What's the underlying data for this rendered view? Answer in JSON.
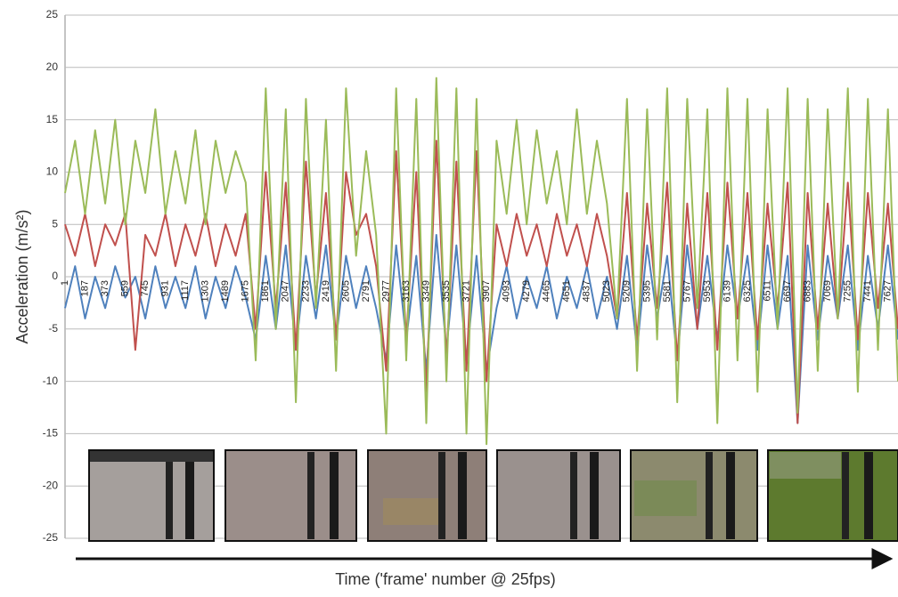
{
  "chart_data": {
    "type": "line",
    "x_label": "Time ('frame' number @ 25fps)",
    "y_label": "Acceleration (m/s²)",
    "x": [
      1,
      94,
      187,
      280,
      373,
      466,
      559,
      652,
      745,
      838,
      931,
      1024,
      1117,
      1210,
      1303,
      1396,
      1489,
      1582,
      1675,
      1768,
      1861,
      1954,
      2047,
      2140,
      2233,
      2326,
      2419,
      2512,
      2605,
      2698,
      2791,
      2884,
      2977,
      3070,
      3163,
      3256,
      3349,
      3442,
      3535,
      3628,
      3721,
      3814,
      3907,
      4000,
      4093,
      4186,
      4279,
      4372,
      4465,
      4558,
      4651,
      4744,
      4837,
      4930,
      5023,
      5116,
      5209,
      5302,
      5395,
      5488,
      5581,
      5674,
      5767,
      5860,
      5953,
      6046,
      6139,
      6232,
      6325,
      6418,
      6511,
      6604,
      6697,
      6790,
      6883,
      6976,
      7069,
      7162,
      7255,
      7348,
      7441,
      7534,
      7627,
      7720
    ],
    "series": [
      {
        "color": "#4f81bd",
        "values": [
          -3,
          1,
          -4,
          0,
          -3,
          1,
          -2,
          0,
          -4,
          1,
          -3,
          0,
          -3,
          1,
          -4,
          0,
          -3,
          1,
          -2,
          -6,
          2,
          -5,
          3,
          -7,
          2,
          -4,
          3,
          -6,
          2,
          -3,
          1,
          -3,
          -8,
          3,
          -6,
          2,
          -9,
          4,
          -7,
          3,
          -8,
          2,
          -9,
          -3,
          1,
          -4,
          0,
          -3,
          1,
          -4,
          0,
          -3,
          1,
          -4,
          0,
          -5,
          2,
          -7,
          3,
          -4,
          2,
          -8,
          3,
          -5,
          2,
          -6,
          3,
          -4,
          2,
          -7,
          3,
          -5,
          2,
          -14,
          3,
          -6,
          2,
          -4,
          3,
          -7,
          2,
          -5,
          3,
          -6
        ]
      },
      {
        "color": "#c0504d",
        "values": [
          5,
          2,
          6,
          1,
          5,
          3,
          6,
          -7,
          4,
          2,
          6,
          1,
          5,
          2,
          6,
          1,
          5,
          2,
          6,
          -5,
          10,
          -3,
          9,
          -7,
          11,
          -2,
          8,
          -6,
          10,
          4,
          6,
          1,
          -9,
          12,
          -6,
          10,
          -11,
          13,
          -8,
          11,
          -9,
          12,
          -10,
          5,
          1,
          6,
          2,
          5,
          1,
          6,
          2,
          5,
          1,
          6,
          2,
          -4,
          8,
          -6,
          7,
          -3,
          9,
          -8,
          7,
          -5,
          8,
          -7,
          9,
          -4,
          8,
          -6,
          7,
          -3,
          9,
          -14,
          8,
          -5,
          7,
          -4,
          9,
          -6,
          8,
          -3,
          7,
          -5
        ]
      },
      {
        "color": "#9bbb59",
        "values": [
          8,
          13,
          6,
          14,
          7,
          15,
          5,
          13,
          8,
          16,
          6,
          12,
          7,
          14,
          5,
          13,
          8,
          12,
          9,
          -8,
          18,
          -5,
          16,
          -12,
          17,
          -3,
          15,
          -9,
          18,
          2,
          12,
          4,
          -15,
          18,
          -8,
          17,
          -14,
          19,
          -10,
          18,
          -15,
          17,
          -16,
          13,
          6,
          15,
          5,
          14,
          7,
          12,
          5,
          16,
          6,
          13,
          7,
          -4,
          17,
          -9,
          16,
          -6,
          18,
          -12,
          17,
          -3,
          16,
          -14,
          18,
          -8,
          17,
          -11,
          16,
          -5,
          18,
          -13,
          17,
          -9,
          16,
          -4,
          18,
          -11,
          17,
          -7,
          16,
          -10
        ]
      }
    ],
    "xlim": [
      1,
      7720
    ],
    "xticks": [
      1,
      187,
      373,
      559,
      745,
      931,
      1117,
      1303,
      1489,
      1675,
      1861,
      2047,
      2233,
      2419,
      2605,
      2791,
      2977,
      3163,
      3349,
      3535,
      3721,
      3907,
      4093,
      4279,
      4465,
      4651,
      4837,
      5023,
      5209,
      5395,
      5581,
      5767,
      5953,
      6139,
      6325,
      6511,
      6697,
      6883,
      7069,
      7255,
      7441,
      7627
    ],
    "ylim": [
      -25,
      25
    ],
    "yticks": [
      -25,
      -20,
      -15,
      -10,
      -5,
      0,
      5,
      10,
      15,
      20,
      25
    ],
    "grid": true
  }
}
